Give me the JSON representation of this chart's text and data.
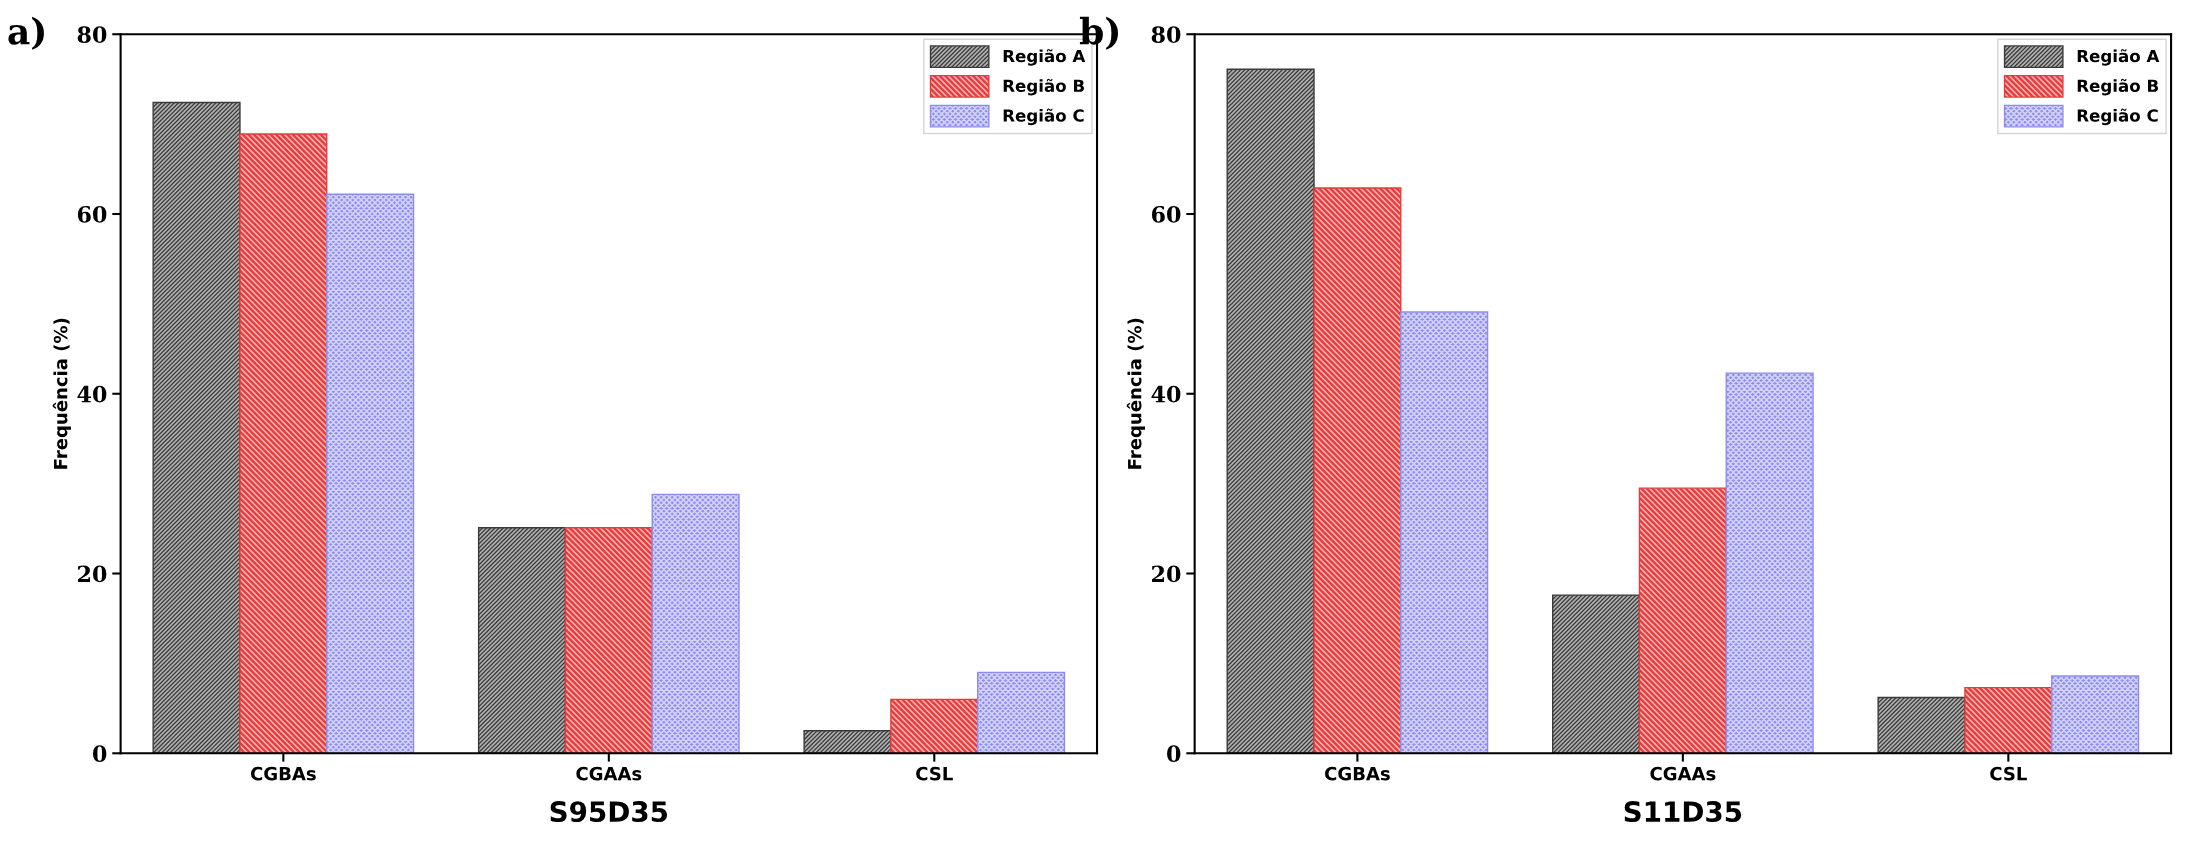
{
  "chart_data": [
    {
      "type": "bar",
      "title": "a)",
      "xlabel": "S95D35",
      "ylabel": "Frequência (%)",
      "categories": [
        "CGBAs",
        "CGAAs",
        "CSL"
      ],
      "ylim": [
        0,
        80
      ],
      "yticks": [
        0,
        20,
        40,
        60,
        80
      ],
      "grid": false,
      "legend": "top right",
      "series": [
        {
          "name": "Região A",
          "color": "#3a3a3a",
          "values": [
            72.4,
            25.1,
            2.5
          ]
        },
        {
          "name": "Região B",
          "color": "#e83a3a",
          "values": [
            68.9,
            25.1,
            6.0
          ]
        },
        {
          "name": "Região C",
          "color": "#8c8cf0",
          "values": [
            62.2,
            28.8,
            9.0
          ]
        }
      ]
    },
    {
      "type": "bar",
      "title": "b)",
      "xlabel": "S11D35",
      "ylabel": "Frequência (%)",
      "categories": [
        "CGBAs",
        "CGAAs",
        "CSL"
      ],
      "ylim": [
        0,
        80
      ],
      "yticks": [
        0,
        20,
        40,
        60,
        80
      ],
      "grid": false,
      "legend": "top right",
      "series": [
        {
          "name": "Região A",
          "color": "#3a3a3a",
          "values": [
            76.1,
            17.6,
            6.2
          ]
        },
        {
          "name": "Região B",
          "color": "#e83a3a",
          "values": [
            62.9,
            29.5,
            7.3
          ]
        },
        {
          "name": "Região C",
          "color": "#8c8cf0",
          "values": [
            49.1,
            42.3,
            8.6
          ]
        }
      ]
    }
  ]
}
